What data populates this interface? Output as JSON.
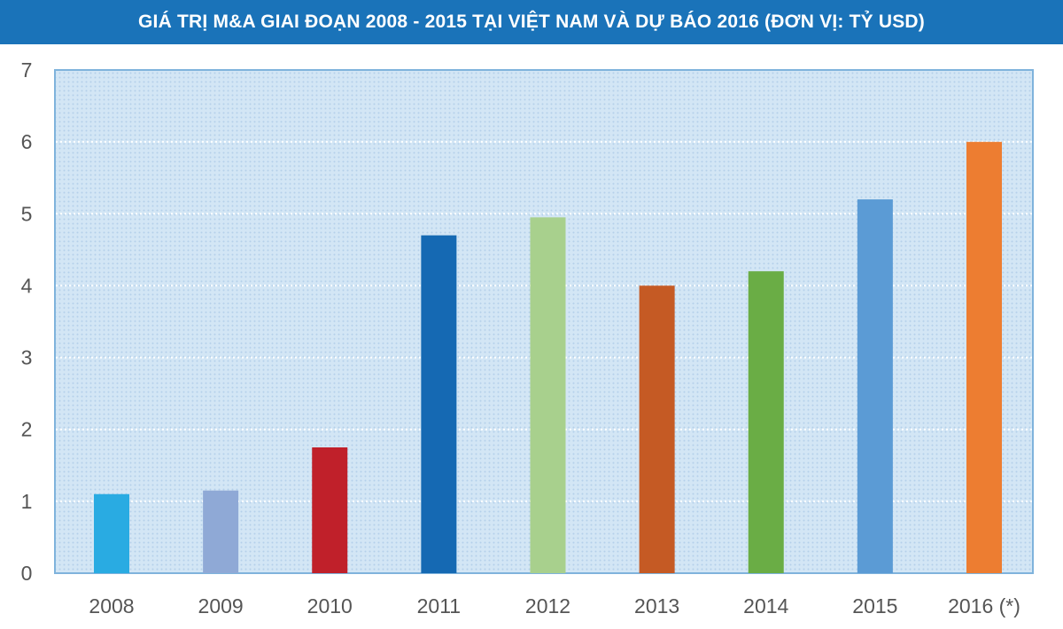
{
  "chart_data": {
    "type": "bar",
    "title": "GIÁ TRỊ M&A GIAI ĐOẠN 2008 - 2015 TẠI VIỆT NAM VÀ DỰ BÁO 2016 (ĐƠN VỊ: TỶ USD)",
    "xlabel": "",
    "ylabel": "",
    "categories": [
      "2008",
      "2009",
      "2010",
      "2011",
      "2012",
      "2013",
      "2014",
      "2015",
      "2016 (*)"
    ],
    "values": [
      1.1,
      1.15,
      1.75,
      4.7,
      4.95,
      4.0,
      4.2,
      5.2,
      6.0
    ],
    "colors": [
      "#29abe2",
      "#8fa9d6",
      "#c0202a",
      "#1569b3",
      "#a8d08d",
      "#c55a24",
      "#6aad45",
      "#5b9bd5",
      "#ed7d31"
    ],
    "ylim": [
      0,
      7
    ],
    "yticks": [
      "0",
      "1",
      "2",
      "3",
      "4",
      "5",
      "6",
      "7"
    ],
    "grid": true,
    "legend": "none"
  },
  "colors": {
    "title_bar": "#1a73b9",
    "plot_background": "#cfe3f3",
    "plot_border": "#7fb3dc"
  }
}
